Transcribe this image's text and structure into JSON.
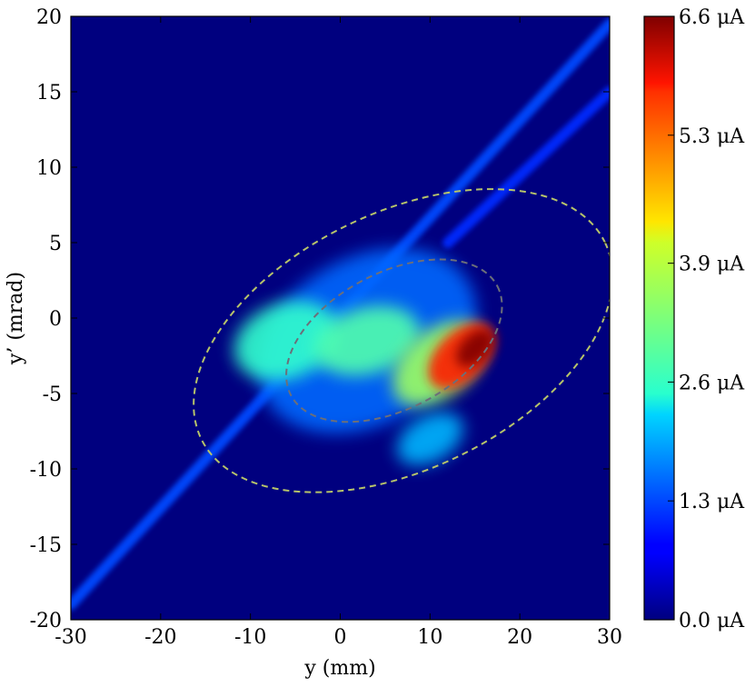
{
  "chart_data": {
    "type": "heatmap",
    "xlabel": "y (mm)",
    "ylabel": "y’ (mrad)",
    "xlim": [
      -30,
      30
    ],
    "ylim": [
      -20,
      20
    ],
    "xticks": [
      {
        "value": -30,
        "label": "-30"
      },
      {
        "value": -20,
        "label": "-20"
      },
      {
        "value": -10,
        "label": "-10"
      },
      {
        "value": 0,
        "label": "0"
      },
      {
        "value": 10,
        "label": "10"
      },
      {
        "value": 20,
        "label": "20"
      },
      {
        "value": 30,
        "label": "30"
      }
    ],
    "yticks": [
      {
        "value": -20,
        "label": "-20"
      },
      {
        "value": -15,
        "label": "-15"
      },
      {
        "value": -10,
        "label": "-10"
      },
      {
        "value": -5,
        "label": "-5"
      },
      {
        "value": 0,
        "label": "0"
      },
      {
        "value": 5,
        "label": "5"
      },
      {
        "value": 10,
        "label": "10"
      },
      {
        "value": 15,
        "label": "15"
      },
      {
        "value": 20,
        "label": "20"
      }
    ],
    "grid": false,
    "colormap": "jet",
    "background_color": "#00007f",
    "colorbar": {
      "unit": "μA",
      "min": 0.0,
      "max": 6.6,
      "ticks": [
        {
          "value": 0.0,
          "label": "0.0 μA"
        },
        {
          "value": 1.3,
          "label": "1.3 μA"
        },
        {
          "value": 2.6,
          "label": "2.6 μA"
        },
        {
          "value": 3.9,
          "label": "3.9 μA"
        },
        {
          "value": 5.3,
          "label": "5.3 μA"
        },
        {
          "value": 6.6,
          "label": "6.6 μA"
        }
      ]
    },
    "intensity_features": [
      {
        "kind": "streak",
        "from": [
          -30,
          -19
        ],
        "to": [
          30,
          19.5
        ],
        "value": 1.3
      },
      {
        "kind": "streak",
        "from": [
          12,
          5
        ],
        "to": [
          30,
          15
        ],
        "value": 1.1
      },
      {
        "kind": "blob",
        "center": [
          3,
          -1.5
        ],
        "radius": [
          13,
          5.5
        ],
        "angle_deg": 30,
        "value": 1.5
      },
      {
        "kind": "blob",
        "center": [
          -6,
          -1.5
        ],
        "radius": [
          6,
          2.5
        ],
        "angle_deg": 20,
        "value": 2.8
      },
      {
        "kind": "blob",
        "center": [
          3,
          -1.5
        ],
        "radius": [
          6,
          2.2
        ],
        "angle_deg": 15,
        "value": 3.0
      },
      {
        "kind": "blob",
        "center": [
          11,
          -3
        ],
        "radius": [
          6,
          2.2
        ],
        "angle_deg": 40,
        "value": 3.5
      },
      {
        "kind": "blob",
        "center": [
          13.5,
          -2.5
        ],
        "radius": [
          4.5,
          1.6
        ],
        "angle_deg": 45,
        "value": 5.6
      },
      {
        "kind": "blob",
        "center": [
          15,
          -2
        ],
        "radius": [
          2.5,
          0.9
        ],
        "angle_deg": 45,
        "value": 6.6
      },
      {
        "kind": "blob",
        "center": [
          10,
          -8
        ],
        "radius": [
          4,
          1.5
        ],
        "angle_deg": 30,
        "value": 2.0
      }
    ],
    "ellipses": [
      {
        "center": [
          7,
          -1.5
        ],
        "semi_axes": [
          25,
          8.5
        ],
        "angle_deg": 26,
        "color": "#b7c46a",
        "dash": true
      },
      {
        "center": [
          6,
          -1.5
        ],
        "semi_axes": [
          13,
          4.5
        ],
        "angle_deg": 28,
        "color": "#6c6f79",
        "dash": true
      }
    ]
  }
}
